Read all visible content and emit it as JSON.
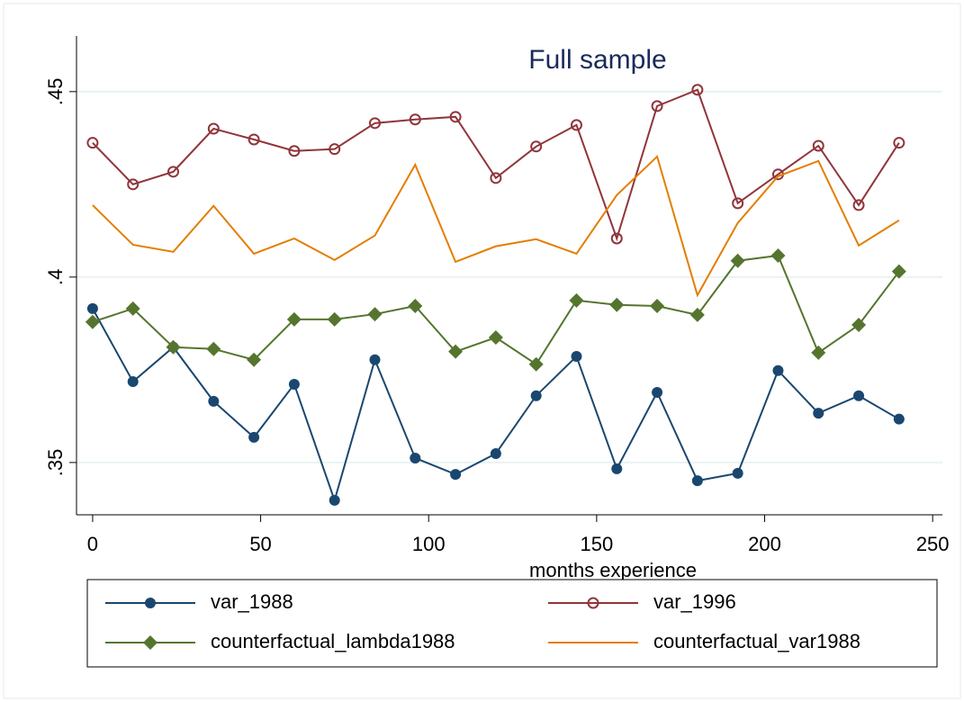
{
  "chart_data": {
    "type": "line",
    "title": "Full sample",
    "x_label": "months experience",
    "x": [
      0,
      12,
      24,
      36,
      48,
      60,
      72,
      84,
      96,
      108,
      120,
      132,
      144,
      156,
      168,
      180,
      192,
      204,
      216,
      228,
      240
    ],
    "series": [
      {
        "name": "var_1988",
        "color": "#1a476f",
        "marker": "filled-circle",
        "values": [
          0.3915,
          0.3718,
          0.3811,
          0.3665,
          0.3568,
          0.3711,
          0.3398,
          0.3777,
          0.3512,
          0.3468,
          0.3524,
          0.368,
          0.3786,
          0.3483,
          0.3689,
          0.3451,
          0.3471,
          0.3748,
          0.3633,
          0.368,
          0.3617
        ]
      },
      {
        "name": "var_1996",
        "color": "#90353b",
        "marker": "hollow-circle",
        "values": [
          0.4362,
          0.425,
          0.4284,
          0.44,
          0.4371,
          0.434,
          0.4345,
          0.4415,
          0.4425,
          0.4432,
          0.4267,
          0.4352,
          0.441,
          0.4104,
          0.4461,
          0.4505,
          0.4199,
          0.4277,
          0.4354,
          0.4194,
          0.4362
        ]
      },
      {
        "name": "counterfactual_lambda1988",
        "color": "#55752f",
        "marker": "diamond",
        "values": [
          0.3879,
          0.3915,
          0.3811,
          0.3806,
          0.3777,
          0.3886,
          0.3886,
          0.39,
          0.3922,
          0.3799,
          0.3837,
          0.3765,
          0.3937,
          0.3925,
          0.3922,
          0.3898,
          0.4044,
          0.4058,
          0.3796,
          0.3871,
          0.4015
        ]
      },
      {
        "name": "counterfactual_var1988",
        "color": "#e37e00",
        "marker": "none",
        "values": [
          0.4194,
          0.4087,
          0.4068,
          0.4192,
          0.4063,
          0.4104,
          0.4046,
          0.4112,
          0.4303,
          0.4041,
          0.4083,
          0.4102,
          0.4063,
          0.4221,
          0.4325,
          0.3951,
          0.4146,
          0.4272,
          0.4313,
          0.4085,
          0.4153
        ]
      }
    ],
    "xlim": [
      -4.8,
      252.9
    ],
    "xticks": [
      0,
      50,
      100,
      150,
      200,
      250
    ],
    "ylim": [
      0.3359,
      0.465
    ],
    "yticks": [
      {
        "value": 0.35,
        "label": ".35"
      },
      {
        "value": 0.4,
        "label": ".4"
      },
      {
        "value": 0.45,
        "label": ".45"
      }
    ],
    "grid": true
  }
}
